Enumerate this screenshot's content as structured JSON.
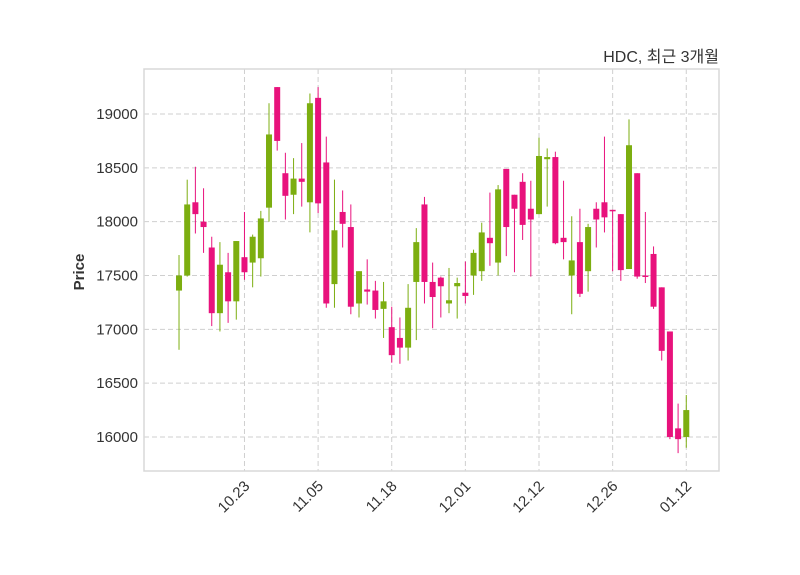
{
  "chart_data": {
    "type": "candlestick",
    "title": "HDC, 최근 3개월",
    "xlabel": "",
    "ylabel": "Price",
    "ylim": [
      15684,
      19418
    ],
    "xlim_index": [
      -4.28,
      66.0
    ],
    "grid": true,
    "yticks": [
      16000,
      16500,
      17000,
      17500,
      18000,
      18500,
      19000
    ],
    "xticks": [
      {
        "index": 8,
        "label": "10.23"
      },
      {
        "index": 17,
        "label": "11.05"
      },
      {
        "index": 26,
        "label": "11.18"
      },
      {
        "index": 35,
        "label": "12.01"
      },
      {
        "index": 44,
        "label": "12.12"
      },
      {
        "index": 53,
        "label": "12.26"
      },
      {
        "index": 62,
        "label": "01.12"
      }
    ],
    "colors": {
      "up": "#7cae10",
      "down": "#e8127c",
      "grid": "#cfcfcf",
      "frame": "#d8d8d8"
    },
    "ohlc": [
      [
        17360,
        17690,
        16810,
        17500
      ],
      [
        17500,
        18390,
        17490,
        18160
      ],
      [
        18180,
        18510,
        17890,
        18070
      ],
      [
        18000,
        18310,
        17710,
        17950
      ],
      [
        17760,
        17860,
        17030,
        17150
      ],
      [
        17150,
        17810,
        16980,
        17600
      ],
      [
        17530,
        17710,
        17060,
        17260
      ],
      [
        17260,
        17820,
        17090,
        17820
      ],
      [
        17670,
        18090,
        17460,
        17530
      ],
      [
        17620,
        17880,
        17390,
        17860
      ],
      [
        17660,
        18100,
        17490,
        18030
      ],
      [
        18130,
        19100,
        18000,
        18810
      ],
      [
        19250,
        19250,
        18660,
        18750
      ],
      [
        18450,
        18640,
        18020,
        18240
      ],
      [
        18250,
        18590,
        18070,
        18400
      ],
      [
        18400,
        18730,
        18140,
        18370
      ],
      [
        18180,
        19190,
        17900,
        19100
      ],
      [
        19150,
        19250,
        18080,
        18170
      ],
      [
        18550,
        18790,
        17200,
        17240
      ],
      [
        17420,
        18390,
        17200,
        17920
      ],
      [
        18090,
        18290,
        17760,
        17980
      ],
      [
        17950,
        18160,
        17140,
        17210
      ],
      [
        17240,
        17540,
        17110,
        17540
      ],
      [
        17370,
        17650,
        17230,
        17350
      ],
      [
        17360,
        17450,
        17100,
        17180
      ],
      [
        17190,
        17440,
        16920,
        17260
      ],
      [
        17020,
        17210,
        16690,
        16760
      ],
      [
        16920,
        17110,
        16680,
        16830
      ],
      [
        16830,
        17420,
        16710,
        17200
      ],
      [
        17440,
        17940,
        16900,
        17810
      ],
      [
        18160,
        18230,
        17240,
        17440
      ],
      [
        17440,
        17620,
        17010,
        17300
      ],
      [
        17480,
        17490,
        17110,
        17400
      ],
      [
        17240,
        17570,
        17150,
        17270
      ],
      [
        17400,
        17480,
        17100,
        17430
      ],
      [
        17340,
        17630,
        17240,
        17310
      ],
      [
        17500,
        17740,
        17320,
        17710
      ],
      [
        17540,
        17990,
        17450,
        17900
      ],
      [
        17850,
        18270,
        17590,
        17800
      ],
      [
        17620,
        18340,
        17500,
        18300
      ],
      [
        18490,
        18490,
        17680,
        17950
      ],
      [
        18250,
        18250,
        17530,
        18120
      ],
      [
        18370,
        18450,
        17830,
        17970
      ],
      [
        18120,
        18380,
        17490,
        18020
      ],
      [
        18070,
        18780,
        18070,
        18610
      ],
      [
        18580,
        18680,
        18140,
        18600
      ],
      [
        18600,
        18650,
        17790,
        17800
      ],
      [
        17850,
        18380,
        17650,
        17810
      ],
      [
        17500,
        18050,
        17140,
        17640
      ],
      [
        17810,
        18120,
        17300,
        17330
      ],
      [
        17540,
        17980,
        17350,
        17950
      ],
      [
        18120,
        18180,
        17760,
        18020
      ],
      [
        18180,
        18790,
        17900,
        18040
      ],
      [
        18110,
        18110,
        17540,
        18100
      ],
      [
        18070,
        18070,
        17450,
        17550
      ],
      [
        17560,
        18950,
        17560,
        18710
      ],
      [
        18450,
        18450,
        17470,
        17490
      ],
      [
        17500,
        18090,
        17430,
        17490
      ],
      [
        17700,
        17770,
        17190,
        17210
      ],
      [
        17390,
        17390,
        16710,
        16800
      ],
      [
        16980,
        16980,
        15980,
        16000
      ],
      [
        16080,
        16310,
        15850,
        15980
      ],
      [
        16000,
        16390,
        15900,
        16250
      ]
    ]
  }
}
